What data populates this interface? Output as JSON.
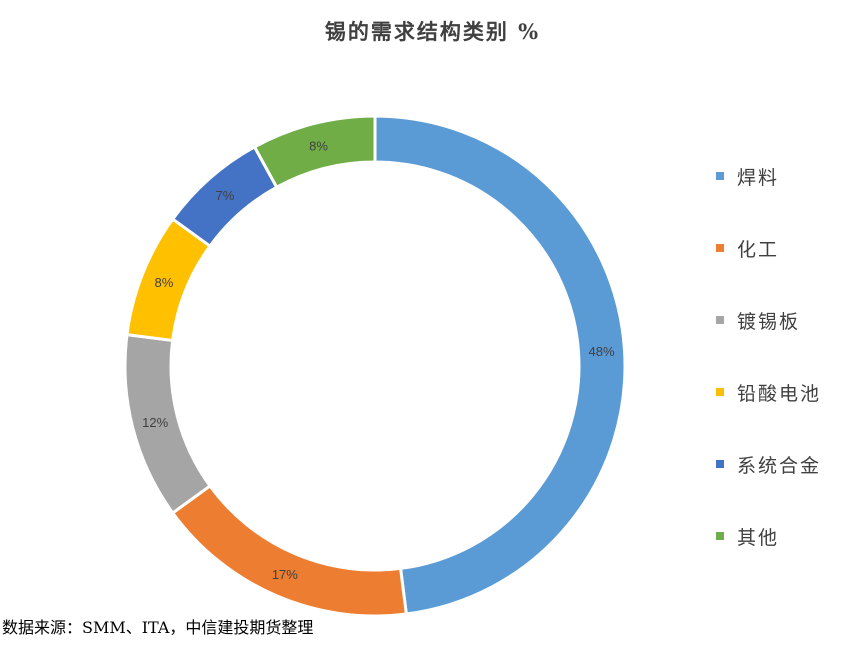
{
  "chart_data": {
    "type": "pie",
    "title": "锡的需求结构类别 %",
    "categories": [
      "焊料",
      "化工",
      "镀锡板",
      "铅酸电池",
      "系统合金",
      "其他"
    ],
    "values": [
      48,
      17,
      12,
      8,
      7,
      8
    ],
    "value_labels": [
      "48%",
      "17%",
      "12%",
      "8%",
      "7%",
      "8%"
    ],
    "colors": [
      "#5b9bd5",
      "#ed7d31",
      "#a5a5a5",
      "#ffc000",
      "#4472c4",
      "#70ad47"
    ],
    "legend_position": "right",
    "donut": true
  },
  "source": "数据来源：SMM、ITA，中信建投期货整理"
}
